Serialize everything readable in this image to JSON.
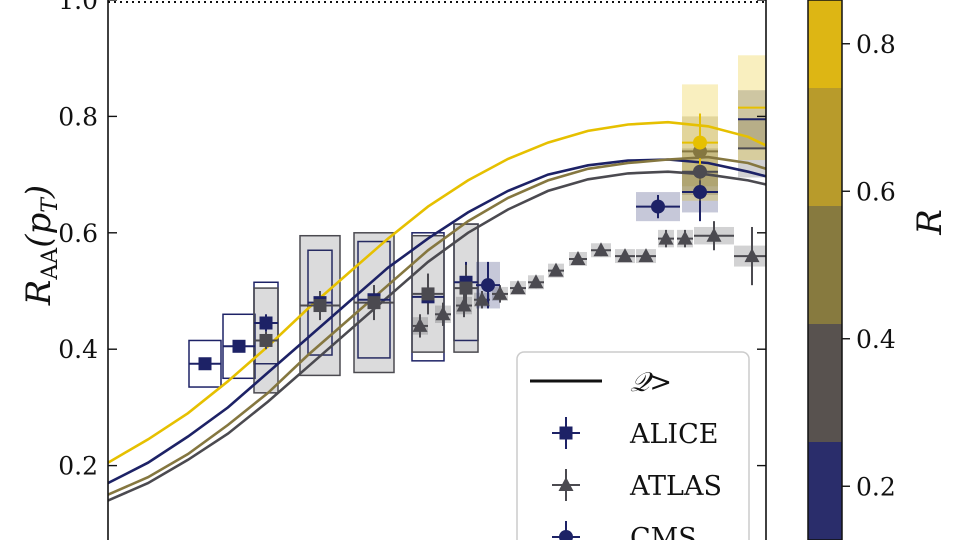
{
  "chart_data": {
    "type": "scatter",
    "ylabel": "R_AA(p_T)",
    "ylim": [
      0.1,
      1.0
    ],
    "yticks": [
      "0.2",
      "0.4",
      "0.6",
      "0.8",
      "1.0"
    ],
    "reference_line": {
      "y": 1.0,
      "style": "dotted"
    },
    "legend": {
      "placement": "bottom-right",
      "entries": [
        {
          "key": "model",
          "label": "𝒬>",
          "marker": "line"
        },
        {
          "key": "alice",
          "label": "ALICE",
          "marker": "square"
        },
        {
          "key": "atlas",
          "label": "ATLAS",
          "marker": "triangle"
        },
        {
          "key": "cms",
          "label": "CMS",
          "marker": "circle"
        }
      ]
    },
    "colorbar": {
      "label": "R",
      "ticks": [
        "0.2",
        "0.4",
        "0.6",
        "0.8"
      ],
      "range": [
        0.1,
        0.9
      ],
      "bands": [
        "#2a2d6b",
        "#58524f",
        "#877a3f",
        "#b89b2b",
        "#ddb614"
      ]
    },
    "colors": {
      "r02": "#1d2266",
      "r04": "#4b4a50",
      "r06": "#857740",
      "r08": "#e6c000",
      "accent_yellow": "#f2cf00"
    },
    "model_curves": [
      {
        "R": 0.2,
        "color": "#1d2266",
        "points": [
          [
            0,
            0.145
          ],
          [
            40,
            0.17
          ],
          [
            80,
            0.205
          ],
          [
            120,
            0.25
          ],
          [
            160,
            0.3
          ],
          [
            200,
            0.36
          ],
          [
            240,
            0.42
          ],
          [
            280,
            0.48
          ],
          [
            320,
            0.54
          ],
          [
            360,
            0.59
          ],
          [
            400,
            0.635
          ],
          [
            440,
            0.672
          ],
          [
            480,
            0.7
          ],
          [
            520,
            0.716
          ],
          [
            560,
            0.724
          ],
          [
            600,
            0.726
          ],
          [
            640,
            0.72
          ],
          [
            680,
            0.705
          ],
          [
            698,
            0.697
          ]
        ]
      },
      {
        "R": 0.4,
        "color": "#4b4a50",
        "points": [
          [
            0,
            0.125
          ],
          [
            40,
            0.14
          ],
          [
            80,
            0.17
          ],
          [
            120,
            0.21
          ],
          [
            160,
            0.255
          ],
          [
            200,
            0.31
          ],
          [
            240,
            0.37
          ],
          [
            280,
            0.43
          ],
          [
            320,
            0.49
          ],
          [
            360,
            0.55
          ],
          [
            400,
            0.6
          ],
          [
            440,
            0.64
          ],
          [
            480,
            0.672
          ],
          [
            520,
            0.692
          ],
          [
            560,
            0.702
          ],
          [
            600,
            0.705
          ],
          [
            640,
            0.7
          ],
          [
            680,
            0.69
          ],
          [
            698,
            0.683
          ]
        ]
      },
      {
        "R": 0.6,
        "color": "#857740",
        "points": [
          [
            0,
            0.13
          ],
          [
            40,
            0.15
          ],
          [
            80,
            0.18
          ],
          [
            120,
            0.22
          ],
          [
            160,
            0.27
          ],
          [
            200,
            0.325
          ],
          [
            240,
            0.39
          ],
          [
            280,
            0.45
          ],
          [
            320,
            0.51
          ],
          [
            360,
            0.57
          ],
          [
            400,
            0.62
          ],
          [
            440,
            0.66
          ],
          [
            480,
            0.69
          ],
          [
            520,
            0.71
          ],
          [
            560,
            0.72
          ],
          [
            600,
            0.726
          ],
          [
            640,
            0.73
          ],
          [
            680,
            0.72
          ],
          [
            698,
            0.71
          ]
        ]
      },
      {
        "R": 0.8,
        "color": "#e6c000",
        "points": [
          [
            0,
            0.175
          ],
          [
            40,
            0.205
          ],
          [
            80,
            0.245
          ],
          [
            120,
            0.29
          ],
          [
            160,
            0.345
          ],
          [
            200,
            0.405
          ],
          [
            240,
            0.47
          ],
          [
            280,
            0.53
          ],
          [
            320,
            0.59
          ],
          [
            360,
            0.645
          ],
          [
            400,
            0.69
          ],
          [
            440,
            0.727
          ],
          [
            480,
            0.755
          ],
          [
            520,
            0.775
          ],
          [
            560,
            0.786
          ],
          [
            600,
            0.79
          ],
          [
            640,
            0.783
          ],
          [
            680,
            0.765
          ],
          [
            698,
            0.75
          ]
        ]
      }
    ],
    "x_units": "relative horizontal position (no x axis printed), 0–698",
    "experiments": [
      {
        "experiment": "ALICE",
        "marker": "square",
        "color": "#1d2266",
        "box": "outline",
        "points": [
          {
            "x": 137,
            "y": 0.375,
            "yerr": 0.01,
            "xerr": 16,
            "sys": 0.04
          },
          {
            "x": 171,
            "y": 0.405,
            "yerr": 0.01,
            "xerr": 16,
            "sys": 0.055
          },
          {
            "x": 198,
            "y": 0.445,
            "yerr": 0.015,
            "xerr": 12,
            "sys": 0.07
          },
          {
            "x": 252,
            "y": 0.48,
            "yerr": 0.02,
            "xerr": 12,
            "sys": 0.09
          },
          {
            "x": 306,
            "y": 0.485,
            "yerr": 0.025,
            "xerr": 16,
            "sys": 0.1
          },
          {
            "x": 360,
            "y": 0.49,
            "yerr": 0.03,
            "xerr": 16,
            "sys": 0.11
          },
          {
            "x": 398,
            "y": 0.515,
            "yerr": 0.035,
            "xerr": 12,
            "sys": 0.1
          }
        ]
      },
      {
        "experiment": "ALICE",
        "marker": "square",
        "color": "#4b4a50",
        "box": "outline",
        "points": [
          {
            "x": 198,
            "y": 0.415,
            "yerr": 0.015,
            "xerr": 12,
            "sys": 0.09
          },
          {
            "x": 252,
            "y": 0.475,
            "yerr": 0.025,
            "xerr": 20,
            "sys": 0.12
          },
          {
            "x": 306,
            "y": 0.48,
            "yerr": 0.03,
            "xerr": 20,
            "sys": 0.12
          },
          {
            "x": 360,
            "y": 0.495,
            "yerr": 0.035,
            "xerr": 16,
            "sys": 0.1
          },
          {
            "x": 398,
            "y": 0.505,
            "yerr": 0.04,
            "xerr": 12,
            "sys": 0.11
          }
        ]
      },
      {
        "experiment": "ATLAS",
        "marker": "triangle",
        "color": "#4b4a50",
        "box": "filled",
        "points": [
          {
            "x": 352,
            "y": 0.44,
            "yerr": 0.02,
            "xerr": 8,
            "sys": 0.015
          },
          {
            "x": 375,
            "y": 0.46,
            "yerr": 0.02,
            "xerr": 8,
            "sys": 0.015
          },
          {
            "x": 396,
            "y": 0.475,
            "yerr": 0.02,
            "xerr": 8,
            "sys": 0.015
          },
          {
            "x": 414,
            "y": 0.485,
            "yerr": 0.015,
            "xerr": 8,
            "sys": 0.012
          },
          {
            "x": 432,
            "y": 0.495,
            "yerr": 0.015,
            "xerr": 8,
            "sys": 0.012
          },
          {
            "x": 450,
            "y": 0.505,
            "yerr": 0.01,
            "xerr": 8,
            "sys": 0.012
          },
          {
            "x": 468,
            "y": 0.515,
            "yerr": 0.01,
            "xerr": 8,
            "sys": 0.012
          },
          {
            "x": 488,
            "y": 0.535,
            "yerr": 0.01,
            "xerr": 8,
            "sys": 0.012
          },
          {
            "x": 510,
            "y": 0.555,
            "yerr": 0.01,
            "xerr": 9,
            "sys": 0.012
          },
          {
            "x": 533,
            "y": 0.57,
            "yerr": 0.01,
            "xerr": 10,
            "sys": 0.012
          },
          {
            "x": 557,
            "y": 0.56,
            "yerr": 0.01,
            "xerr": 10,
            "sys": 0.012
          },
          {
            "x": 578,
            "y": 0.56,
            "yerr": 0.01,
            "xerr": 10,
            "sys": 0.012
          },
          {
            "x": 598,
            "y": 0.59,
            "yerr": 0.015,
            "xerr": 8,
            "sys": 0.015
          },
          {
            "x": 617,
            "y": 0.59,
            "yerr": 0.015,
            "xerr": 8,
            "sys": 0.015
          },
          {
            "x": 646,
            "y": 0.595,
            "yerr": 0.025,
            "xerr": 20,
            "sys": 0.015
          },
          {
            "x": 684,
            "y": 0.56,
            "yerr": 0.05,
            "xerr": 18,
            "sys": 0.018
          },
          {
            "x": 746,
            "y": 0.62,
            "yerr": 0.16,
            "xerr": 26,
            "sys": 0.02
          }
        ]
      },
      {
        "experiment": "CMS",
        "marker": "circle",
        "color": "#1d2266",
        "box": "filled",
        "points": [
          {
            "x": 420,
            "y": 0.51,
            "yerr": 0.04,
            "xerr": 12,
            "sys": 0.04
          },
          {
            "x": 590,
            "y": 0.645,
            "yerr": 0.02,
            "xerr": 22,
            "sys": 0.025
          },
          {
            "x": 632,
            "y": 0.67,
            "yerr": 0.05,
            "xerr": 18,
            "sys": 0.035
          },
          {
            "x": 718,
            "y": 0.795,
            "yerr": 0.06,
            "xerr": 48,
            "sys": 0.05
          }
        ]
      },
      {
        "experiment": "CMS",
        "marker": "circle",
        "color": "#4b4a50",
        "box": "filled",
        "points": [
          {
            "x": 632,
            "y": 0.705,
            "yerr": 0.05,
            "xerr": 18,
            "sys": 0.04
          },
          {
            "x": 718,
            "y": 0.745,
            "yerr": 0.08,
            "xerr": 48,
            "sys": 0.05
          }
        ]
      },
      {
        "experiment": "CMS",
        "marker": "circle",
        "color": "#857740",
        "box": "filled",
        "points": [
          {
            "x": 632,
            "y": 0.74,
            "yerr": 0.05,
            "xerr": 18,
            "sys": 0.06
          }
        ]
      },
      {
        "experiment": "CMS",
        "marker": "circle",
        "color": "#e6c000",
        "box": "filled",
        "points": [
          {
            "x": 632,
            "y": 0.755,
            "yerr": 0.05,
            "xerr": 18,
            "sys": 0.1
          },
          {
            "x": 718,
            "y": 0.815,
            "yerr": 0.07,
            "xerr": 48,
            "sys": 0.09
          }
        ]
      }
    ]
  }
}
